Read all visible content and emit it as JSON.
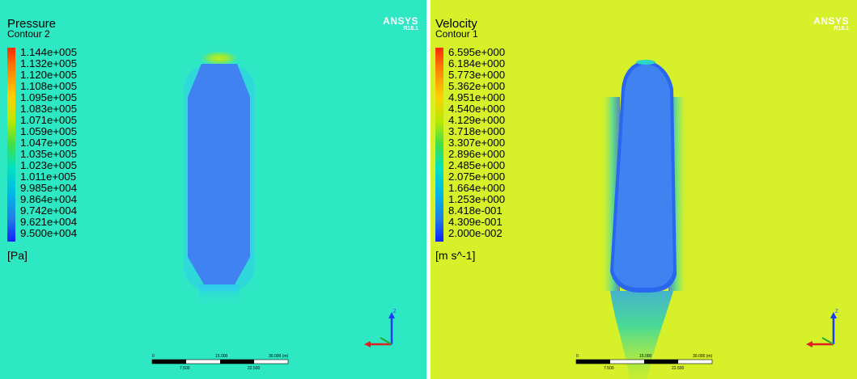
{
  "panels": [
    {
      "title": "Pressure",
      "subtitle": "Contour 2",
      "legend": [
        "1.144e+005",
        "1.132e+005",
        "1.120e+005",
        "1.108e+005",
        "1.095e+005",
        "1.083e+005",
        "1.071e+005",
        "1.059e+005",
        "1.047e+005",
        "1.035e+005",
        "1.023e+005",
        "1.011e+005",
        "9.985e+004",
        "9.864e+004",
        "9.742e+004",
        "9.621e+004",
        "9.500e+004"
      ],
      "unit": "[Pa]",
      "brand": "ANSYS",
      "version": "R18.1",
      "background_color": "#2ee8c4",
      "body_color": "#3f82f0",
      "scale": {
        "top": [
          "0",
          "15.000",
          "30.000 (m)"
        ],
        "bottom": [
          "7.500",
          "22.500"
        ]
      },
      "axis_label": "Z"
    },
    {
      "title": "Velocity",
      "subtitle": "Contour 1",
      "legend": [
        "6.595e+000",
        "6.184e+000",
        "5.773e+000",
        "5.362e+000",
        "4.951e+000",
        "4.540e+000",
        "4.129e+000",
        "3.718e+000",
        "3.307e+000",
        "2.896e+000",
        "2.485e+000",
        "2.075e+000",
        "1.664e+000",
        "1.253e+000",
        "8.418e-001",
        "4.309e-001",
        "2.000e-002"
      ],
      "unit": "[m s^-1]",
      "brand": "ANSYS",
      "version": "R18.1",
      "background_color": "#d6f02a",
      "body_color": "#3f82f0",
      "scale": {
        "top": [
          "0",
          "15.000",
          "30.000 (m)"
        ],
        "bottom": [
          "7.500",
          "22.500"
        ]
      },
      "axis_label": "Z"
    }
  ]
}
